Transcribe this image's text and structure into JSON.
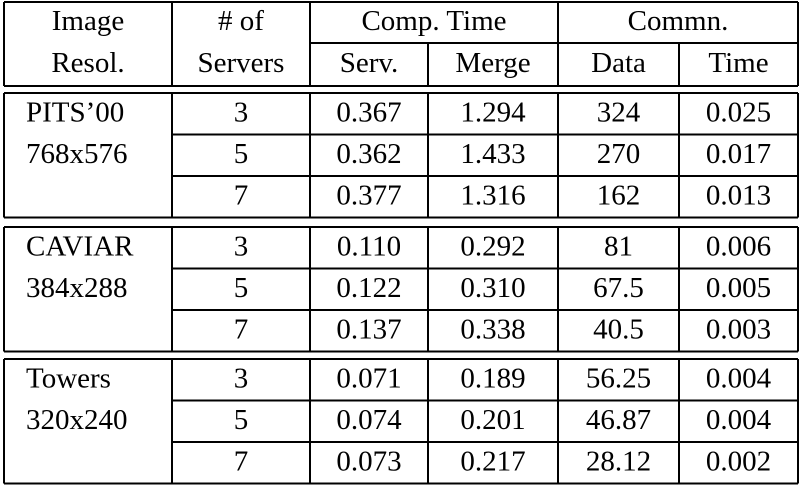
{
  "table": {
    "header": {
      "image_resolution": [
        "Image",
        "Resol."
      ],
      "num_servers": [
        "# of",
        "Servers"
      ],
      "comp_time": {
        "label": "Comp. Time",
        "sub": [
          "Serv.",
          "Merge"
        ]
      },
      "commn": {
        "label": "Commn.",
        "sub": [
          "Data",
          "Time"
        ]
      }
    },
    "groups": [
      {
        "name": "PITS’00",
        "resolution": "768x576",
        "rows": [
          {
            "servers": "3",
            "serv": "0.367",
            "merge": "1.294",
            "data": "324",
            "time": "0.025"
          },
          {
            "servers": "5",
            "serv": "0.362",
            "merge": "1.433",
            "data": "270",
            "time": "0.017"
          },
          {
            "servers": "7",
            "serv": "0.377",
            "merge": "1.316",
            "data": "162",
            "time": "0.013"
          }
        ]
      },
      {
        "name": "CAVIAR",
        "resolution": "384x288",
        "rows": [
          {
            "servers": "3",
            "serv": "0.110",
            "merge": "0.292",
            "data": "81",
            "time": "0.006"
          },
          {
            "servers": "5",
            "serv": "0.122",
            "merge": "0.310",
            "data": "67.5",
            "time": "0.005"
          },
          {
            "servers": "7",
            "serv": "0.137",
            "merge": "0.338",
            "data": "40.5",
            "time": "0.003"
          }
        ]
      },
      {
        "name": "Towers",
        "resolution": "320x240",
        "rows": [
          {
            "servers": "3",
            "serv": "0.071",
            "merge": "0.189",
            "data": "56.25",
            "time": "0.004"
          },
          {
            "servers": "5",
            "serv": "0.074",
            "merge": "0.201",
            "data": "46.87",
            "time": "0.004"
          },
          {
            "servers": "7",
            "serv": "0.073",
            "merge": "0.217",
            "data": "28.12",
            "time": "0.002"
          }
        ]
      }
    ]
  }
}
